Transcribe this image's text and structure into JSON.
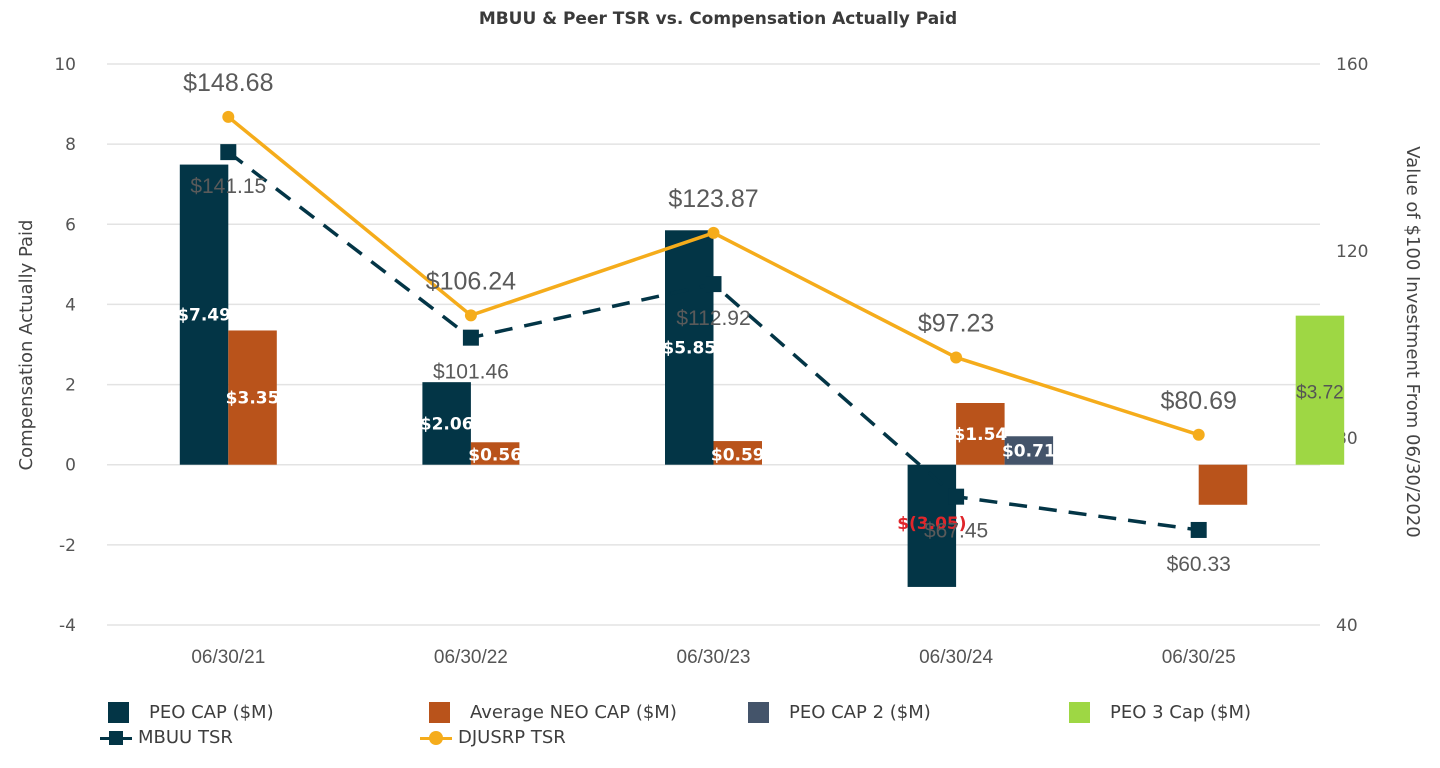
{
  "chart_data": {
    "type": "bar",
    "title": "MBUU & Peer TSR vs. Compensation Actually Paid",
    "categories": [
      "06/30/21",
      "06/30/22",
      "06/30/23",
      "06/30/24",
      "06/30/25"
    ],
    "left_axis": {
      "label": "Compensation Actually Paid",
      "range": [
        -4,
        10
      ],
      "ticks": [
        10,
        8,
        6,
        4,
        2,
        0,
        -2,
        -4
      ],
      "tick_labels": [
        "10",
        "8",
        "6",
        "4",
        "2",
        "0",
        "-2",
        "-4"
      ]
    },
    "right_axis": {
      "label": "Value of $100 Investment From 06/30/2020",
      "range": [
        40,
        160
      ],
      "ticks": [
        160,
        120,
        80,
        40
      ],
      "tick_labels": [
        "160",
        "120",
        "80",
        "40"
      ]
    },
    "grid": true,
    "legend_position": "bottom",
    "bar_series": [
      {
        "name": "PEO CAP ($M)",
        "color": "#033546",
        "values": [
          7.49,
          2.06,
          5.85,
          -3.05,
          null
        ],
        "labels": [
          "$7.49",
          "$2.06",
          "$5.85",
          "$(3.05)",
          ""
        ]
      },
      {
        "name": "Average NEO CAP ($M)",
        "color": "#b9531b",
        "values": [
          3.35,
          0.56,
          0.59,
          1.54,
          -1.0
        ],
        "labels": [
          "$3.35",
          "$0.56",
          "$0.59",
          "$1.54",
          "$(1.00)"
        ]
      },
      {
        "name": "PEO CAP 2 ($M)",
        "color": "#44546a",
        "values": [
          null,
          null,
          null,
          0.71,
          null
        ],
        "labels": [
          "",
          "",
          "",
          "$0.71",
          ""
        ]
      },
      {
        "name": "PEO 3 Cap ($M)",
        "color": "#9ed744",
        "values": [
          null,
          null,
          null,
          null,
          3.72
        ],
        "labels": [
          "",
          "",
          "",
          "",
          "$3.72"
        ]
      }
    ],
    "line_series": [
      {
        "name": "MBUU TSR",
        "color": "#033546",
        "style": "dashed",
        "marker": "square",
        "axis": "right",
        "values": [
          141.15,
          101.46,
          112.92,
          67.45,
          60.33
        ],
        "labels": [
          "$141.15",
          "$101.46",
          "$112.92",
          "$67.45",
          "$60.33"
        ]
      },
      {
        "name": "DJUSRP TSR",
        "color": "#f5ac1b",
        "style": "solid",
        "marker": "circle",
        "axis": "right",
        "values": [
          148.68,
          106.24,
          123.87,
          97.23,
          80.69
        ],
        "labels": [
          "$148.68",
          "$106.24",
          "$123.87",
          "$97.23",
          "$80.69"
        ]
      }
    ],
    "negative_label_color": "#e0262b"
  },
  "legend": {
    "items": [
      {
        "label": "PEO CAP ($M)",
        "color": "#033546",
        "kind": "bar"
      },
      {
        "label": "Average NEO CAP ($M)",
        "color": "#b9531b",
        "kind": "bar"
      },
      {
        "label": "PEO CAP 2 ($M)",
        "color": "#44546a",
        "kind": "bar"
      },
      {
        "label": "PEO 3 Cap ($M)",
        "color": "#9ed744",
        "kind": "bar"
      },
      {
        "label": "MBUU TSR",
        "color": "#033546",
        "kind": "line-square"
      },
      {
        "label": "DJUSRP TSR",
        "color": "#f5ac1b",
        "kind": "line-circle"
      }
    ]
  }
}
